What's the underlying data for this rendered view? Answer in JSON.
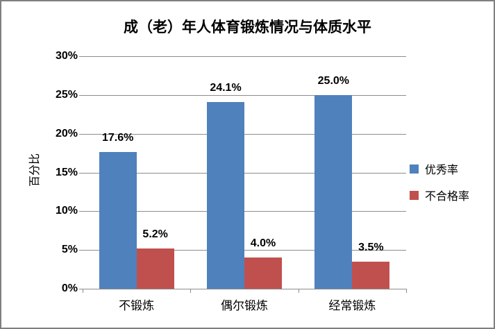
{
  "window": {
    "background": "#ffffff",
    "border_color": "#7f7f7f"
  },
  "chart_data": {
    "type": "bar",
    "title": "成（老）年人体育锻炼情况与体质水平",
    "xlabel": "",
    "ylabel": "百分比",
    "categories": [
      "不锻炼",
      "偶尔锻炼",
      "经常锻炼"
    ],
    "series": [
      {
        "name": "优秀率",
        "color": "#4f81bd",
        "values": [
          17.6,
          24.1,
          25.0
        ],
        "data_labels": [
          "17.6%",
          "24.1%",
          "25.0%"
        ]
      },
      {
        "name": "不合格率",
        "color": "#c0504d",
        "values": [
          5.2,
          4.0,
          3.5
        ],
        "data_labels": [
          "5.2%",
          "4.0%",
          "3.5%"
        ]
      }
    ],
    "ylim": [
      0,
      30
    ],
    "ytick_step": 5,
    "ytick_labels": [
      "0%",
      "5%",
      "10%",
      "15%",
      "20%",
      "25%",
      "30%"
    ],
    "grid": true,
    "gridline_color": "#8c8c8c",
    "axis_color": "#8c8c8c",
    "text_color": "#000000",
    "legend_position": "right"
  }
}
